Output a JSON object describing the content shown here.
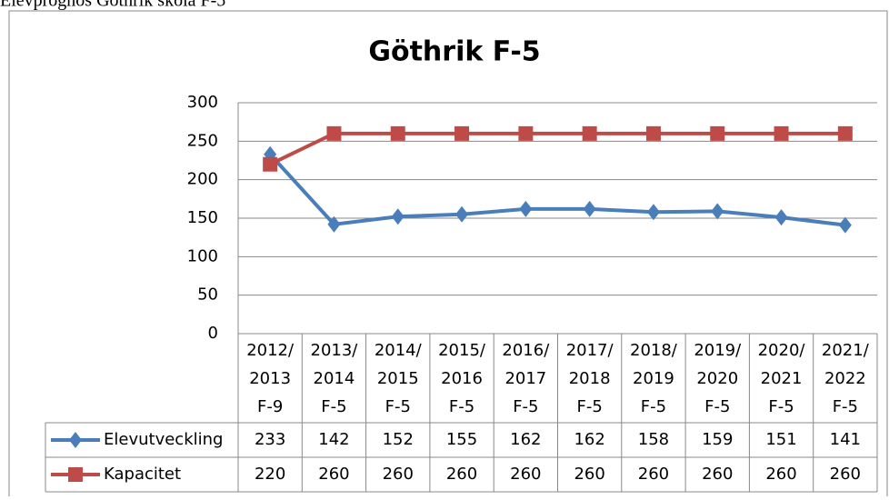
{
  "caption": "Elevprognos Göthrik skola F-5",
  "chart_data": {
    "type": "line",
    "title": "Göthrik F-5",
    "categories": [
      "2012/\n2013\nF-9",
      "2013/\n2014\nF-5",
      "2014/\n2015\nF-5",
      "2015/\n2016\nF-5",
      "2016/\n2017\nF-5",
      "2017/\n2018\nF-5",
      "2018/\n2019\nF-5",
      "2019/\n2020\nF-5",
      "2020/\n2021\nF-5",
      "2021/\n2022\nF-5"
    ],
    "series": [
      {
        "name": "Elevutveckling",
        "color": "#4a7ebb",
        "marker": "diamond",
        "values": [
          233,
          142,
          152,
          155,
          162,
          162,
          158,
          159,
          151,
          141
        ]
      },
      {
        "name": "Kapacitet",
        "color": "#be4b48",
        "marker": "square",
        "values": [
          220,
          260,
          260,
          260,
          260,
          260,
          260,
          260,
          260,
          260
        ]
      }
    ],
    "ylim": [
      0,
      300
    ],
    "yticks": [
      0,
      50,
      100,
      150,
      200,
      250,
      300
    ],
    "grid": true,
    "data_table": true
  }
}
